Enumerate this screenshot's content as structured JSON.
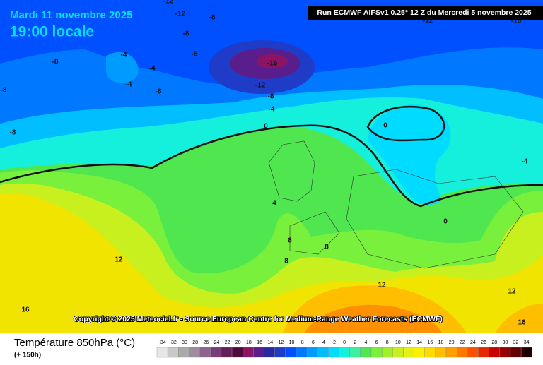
{
  "header": {
    "date": "Mardi 11 novembre 2025",
    "time": "19:00 locale",
    "run": "Run ECMWF AIFSv1 0.25° 12 Z du Mercredi 5 novembre 2025"
  },
  "map": {
    "contour_labels": [
      -12,
      -12,
      -8,
      -8,
      -8,
      -4,
      -4,
      -8,
      -4,
      -8,
      -8,
      -8,
      -16,
      -12,
      -8,
      -4,
      0,
      0,
      4,
      8,
      8,
      8,
      12,
      12,
      12,
      16,
      16,
      0,
      -4,
      -12,
      -16
    ],
    "copyright": "Copyright © 2025 Meteociel.fr - Source European Centre for Medium-Range Weather Forecasts (ECMWF)"
  },
  "legend": {
    "title": "Température 850hPa (°C)",
    "subtitle": "(+ 150h)",
    "values": [
      -34,
      -32,
      -30,
      -28,
      -26,
      -24,
      -22,
      -20,
      -18,
      -16,
      -14,
      -12,
      -10,
      -8,
      -6,
      -4,
      -2,
      0,
      2,
      4,
      6,
      8,
      10,
      12,
      14,
      16,
      18,
      20,
      22,
      24,
      26,
      28,
      30,
      32,
      34
    ],
    "colors": [
      "#e6e6e6",
      "#c8c8c8",
      "#aaaaaa",
      "#a08ca0",
      "#8c648c",
      "#783c78",
      "#641e5a",
      "#500a3c",
      "#8c1464",
      "#5a1e8c",
      "#2828a0",
      "#1e3cc8",
      "#0050ff",
      "#0078ff",
      "#009bff",
      "#00beff",
      "#00dcff",
      "#14f0dc",
      "#3cf0a0",
      "#50e650",
      "#78f03c",
      "#a0f028",
      "#c8f01e",
      "#e6f014",
      "#fff000",
      "#ffdc00",
      "#ffbe00",
      "#ffa000",
      "#ff7800",
      "#ff5000",
      "#e62800",
      "#c80000",
      "#960000",
      "#640000",
      "#1e0000"
    ]
  }
}
